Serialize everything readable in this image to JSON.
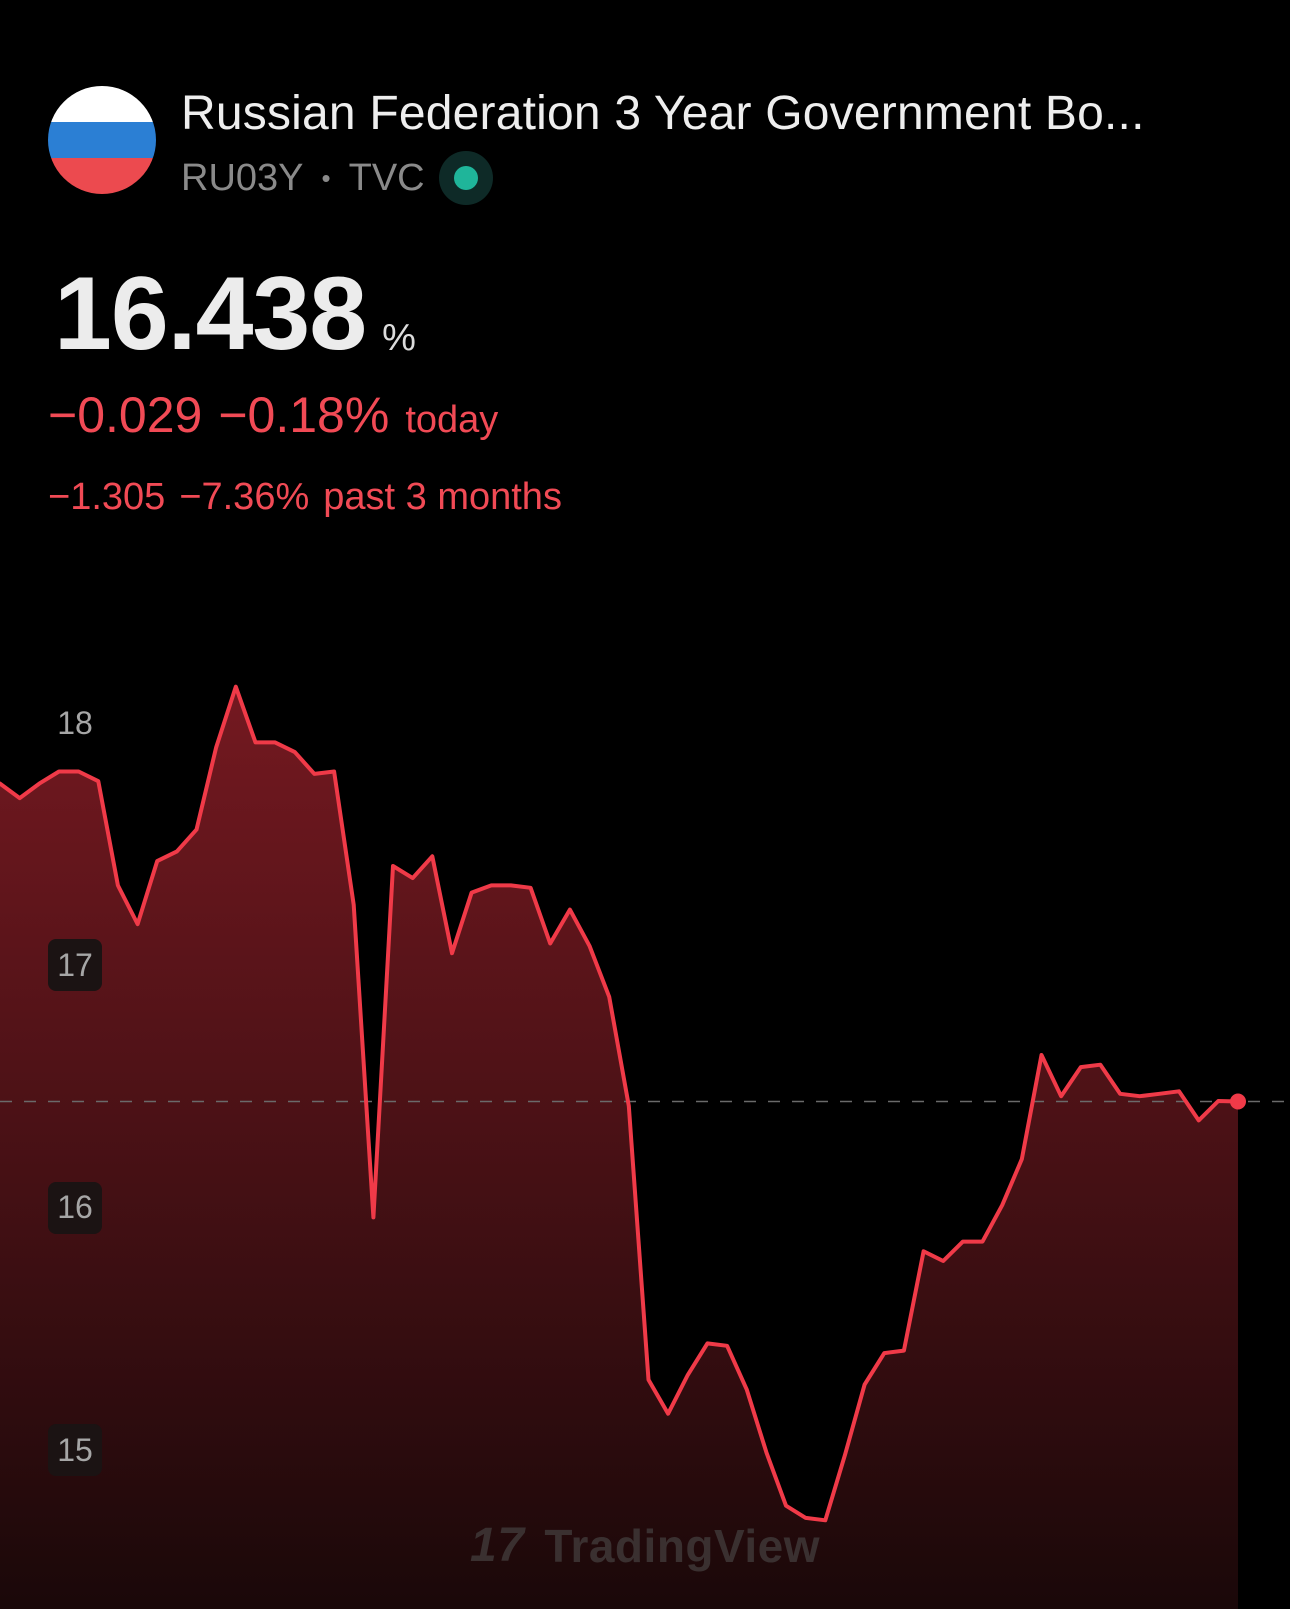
{
  "header": {
    "title": "Russian Federation 3 Year Government Bo...",
    "symbol": "RU03Y",
    "separator": "•",
    "exchange": "TVC",
    "flag_colors": [
      "#ffffff",
      "#2b7fd4",
      "#ec4a4f"
    ]
  },
  "quote": {
    "price": "16.438",
    "unit": "%",
    "change_today": "−0.029",
    "change_today_pct": "−0.18%",
    "today_label": "today",
    "change_period": "−1.305",
    "change_period_pct": "−7.36%",
    "period_label": "past 3 months"
  },
  "colors": {
    "accent_negative": "#f14a55",
    "live": "#1fb59a"
  },
  "watermark": {
    "logo": "17",
    "text": "TradingView"
  },
  "chart_data": {
    "type": "area",
    "ylim": [
      14.8,
      18.2
    ],
    "y_ticks": [
      {
        "value": 18,
        "label": "18",
        "boxed": false
      },
      {
        "value": 17,
        "label": "17",
        "boxed": true
      },
      {
        "value": 16,
        "label": "16",
        "boxed": true
      },
      {
        "value": 15,
        "label": "15",
        "boxed": true
      }
    ],
    "current_value": 16.438,
    "values": [
      17.75,
      17.69,
      17.75,
      17.8,
      17.8,
      17.76,
      17.33,
      17.17,
      17.43,
      17.47,
      17.56,
      17.9,
      18.15,
      17.92,
      17.92,
      17.88,
      17.79,
      17.8,
      17.25,
      15.96,
      17.41,
      17.36,
      17.45,
      17.05,
      17.3,
      17.33,
      17.33,
      17.32,
      17.09,
      17.23,
      17.08,
      16.87,
      16.42,
      15.29,
      15.15,
      15.31,
      15.44,
      15.43,
      15.25,
      14.99,
      14.77,
      14.72,
      14.71,
      14.98,
      15.27,
      15.4,
      15.41,
      15.82,
      15.78,
      15.86,
      15.86,
      16.01,
      16.2,
      16.63,
      16.46,
      16.58,
      16.59,
      16.47,
      16.46,
      16.47,
      16.48,
      16.36,
      16.44,
      16.438
    ]
  }
}
